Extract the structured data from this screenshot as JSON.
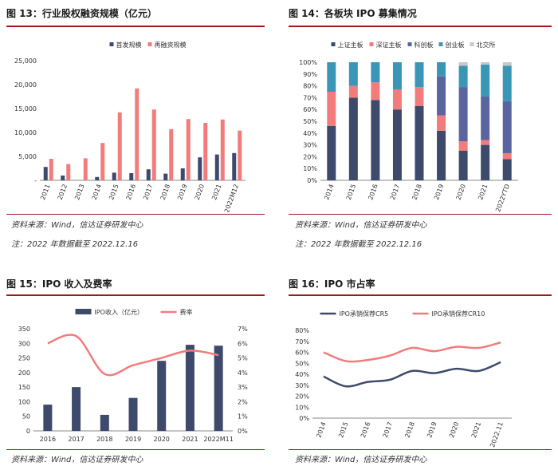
{
  "panels": {
    "p13": {
      "title": "图 13：行业股权融资规模（亿元）",
      "source": "资料来源：Wind，信达证券研发中心",
      "note": "注：2022 年数据截至 2022.12.16"
    },
    "p14": {
      "title": "图 14：各板块 IPO 募集情况",
      "source": "资料来源：Wind，信达证券研发中心",
      "note": "注：2022 年数据截至 2022.12.16"
    },
    "p15": {
      "title": "图 15：IPO 收入及费率",
      "source": "资料来源：Wind，信达证券研发中心"
    },
    "p16": {
      "title": "图 16：IPO 市占率",
      "source": "资料来源：Wind，信达证券研发中心"
    }
  },
  "chart_data": [
    {
      "type": "bar",
      "categories": [
        "2011",
        "2012",
        "2013",
        "2014",
        "2015",
        "2016",
        "2017",
        "2018",
        "2019",
        "2020",
        "2021",
        "2022M12"
      ],
      "series": [
        {
          "name": "首发规模",
          "color": "#3d4a6b",
          "values": [
            2800,
            1000,
            0,
            700,
            1600,
            1500,
            2300,
            1400,
            2500,
            4800,
            5400,
            5700
          ]
        },
        {
          "name": "再融资规模",
          "color": "#f27c7c",
          "values": [
            4500,
            3400,
            4600,
            7800,
            14200,
            19200,
            14800,
            10700,
            12800,
            12000,
            12700,
            10400
          ]
        }
      ],
      "yticks": [
        "-",
        "5,000",
        "10,000",
        "15,000",
        "20,000",
        "25,000"
      ],
      "ylim": [
        0,
        25000
      ],
      "legend": "top-center"
    },
    {
      "type": "bar",
      "stacked": true,
      "categories": [
        "2014",
        "2015",
        "2016",
        "2017",
        "2018",
        "2019",
        "2020",
        "2021",
        "2022YTD"
      ],
      "series": [
        {
          "name": "上证主板",
          "color": "#3d4a6b",
          "values": [
            46,
            70,
            68,
            60,
            63,
            42,
            25,
            30,
            18
          ]
        },
        {
          "name": "深证主板",
          "color": "#f27c7c",
          "values": [
            29,
            10,
            15,
            17,
            16,
            13,
            8,
            4,
            5
          ]
        },
        {
          "name": "科创板",
          "color": "#5a65a0",
          "values": [
            0,
            0,
            0,
            0,
            0,
            33,
            46,
            37,
            44
          ]
        },
        {
          "name": "创业板",
          "color": "#3a96b7",
          "values": [
            25,
            20,
            17,
            23,
            21,
            12,
            18,
            27,
            30
          ]
        },
        {
          "name": "北交所",
          "color": "#c8c8c8",
          "values": [
            0,
            0,
            0,
            0,
            0,
            0,
            3,
            2,
            3
          ]
        }
      ],
      "yticks": [
        "0%",
        "10%",
        "20%",
        "30%",
        "40%",
        "50%",
        "60%",
        "70%",
        "80%",
        "90%",
        "100%"
      ],
      "ylim": [
        0,
        100
      ],
      "legend": "top-center"
    },
    {
      "type": "bar",
      "categories": [
        "2016",
        "2017",
        "2018",
        "2019",
        "2020",
        "2021",
        "2022M11"
      ],
      "series": [
        {
          "name": "IPO收入（亿元）",
          "color": "#3d4a6b",
          "kind": "bar",
          "axis": "left",
          "values": [
            90,
            150,
            55,
            113,
            240,
            295,
            292
          ]
        },
        {
          "name": "费率",
          "color": "#f27c7c",
          "kind": "line",
          "axis": "right",
          "values": [
            6.0,
            6.5,
            3.9,
            4.5,
            5.0,
            5.5,
            5.2
          ]
        }
      ],
      "yticks_left": [
        "0",
        "50",
        "100",
        "150",
        "200",
        "250",
        "300",
        "350"
      ],
      "yticks_right": [
        "0%",
        "1%",
        "2%",
        "3%",
        "4%",
        "5%",
        "6%",
        "7%"
      ],
      "ylim_left": [
        0,
        350
      ],
      "ylim_right": [
        0,
        7
      ],
      "legend": "top-center"
    },
    {
      "type": "line",
      "categories": [
        "2014",
        "2015",
        "2016",
        "2017",
        "2018",
        "2019",
        "2020",
        "2021",
        "2022.11"
      ],
      "series": [
        {
          "name": "IPO承销保荐CR5",
          "color": "#3d4a6b",
          "values": [
            38,
            29,
            33,
            35,
            43,
            41,
            45,
            43,
            51
          ]
        },
        {
          "name": "IPO承销保荐CR10",
          "color": "#f27c7c",
          "values": [
            60,
            52,
            53,
            57,
            64,
            61,
            65,
            64,
            69
          ]
        }
      ],
      "yticks": [
        "0%",
        "10%",
        "20%",
        "30%",
        "40%",
        "50%",
        "60%",
        "70%",
        "80%"
      ],
      "ylim": [
        0,
        80
      ],
      "legend": "top-center"
    }
  ]
}
